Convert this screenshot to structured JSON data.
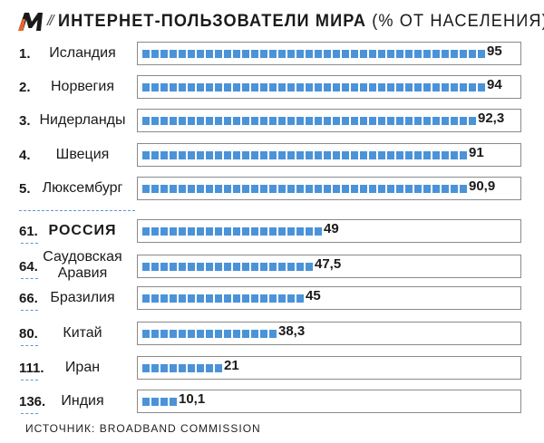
{
  "header": {
    "logo_letter": "M",
    "slashes": "//",
    "title": "ИНТЕРНЕТ-ПОЛЬЗОВАТЕЛИ МИРА",
    "title_unit": "(% ОТ НАСЕЛЕНИЯ)"
  },
  "colors": {
    "bar": "#4b93d8",
    "logo": "#e8672a"
  },
  "chart_data": {
    "type": "bar",
    "orientation": "horizontal",
    "title": "ИНТЕРНЕТ-ПОЛЬЗОВАТЕЛИ МИРА (% ОТ НАСЕЛЕНИЯ)",
    "xlim": [
      0,
      100
    ],
    "grid": false,
    "rows": [
      {
        "rank": "1.",
        "label": "Исландия",
        "value": 95,
        "value_label": "95"
      },
      {
        "rank": "2.",
        "label": "Норвегия",
        "value": 94,
        "value_label": "94"
      },
      {
        "rank": "3.",
        "label": "Нидерланды",
        "value": 92.3,
        "value_label": "92,3"
      },
      {
        "rank": "4.",
        "label": "Швеция",
        "value": 91,
        "value_label": "91"
      },
      {
        "rank": "5.",
        "label": "Люксембург",
        "value": 90.9,
        "value_label": "90,9"
      },
      {
        "rank": "61.",
        "label": "РОССИЯ",
        "value": 49,
        "value_label": "49",
        "highlight": true
      },
      {
        "rank": "64.",
        "label": "Саудовская Аравия",
        "label_lines": [
          "Саудовская",
          "Аравия"
        ],
        "value": 47.5,
        "value_label": "47,5"
      },
      {
        "rank": "66.",
        "label": "Бразилия",
        "value": 45,
        "value_label": "45"
      },
      {
        "rank": "80.",
        "label": "Китай",
        "value": 38.3,
        "value_label": "38,3"
      },
      {
        "rank": "111.",
        "label": "Иран",
        "value": 21,
        "value_label": "21"
      },
      {
        "rank": "136.",
        "label": "Индия",
        "value": 10.1,
        "value_label": "10,1"
      }
    ]
  },
  "footer": {
    "source": "ИСТОЧНИК: BROADBAND COMMISSION"
  }
}
